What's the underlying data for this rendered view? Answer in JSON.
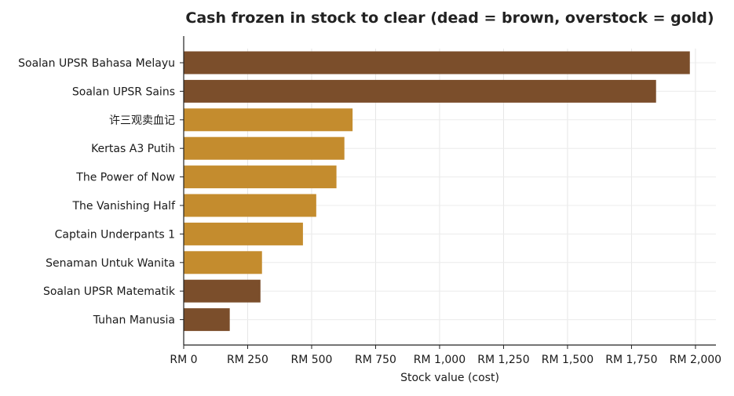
{
  "chart_data": {
    "type": "bar",
    "orientation": "horizontal",
    "title": "Cash frozen in stock to clear (dead = brown, overstock = gold)",
    "xlabel": "Stock value (cost)",
    "ylabel": "",
    "xlim": [
      0,
      2080
    ],
    "x_ticks": [
      0,
      250,
      500,
      750,
      1000,
      1250,
      1500,
      1750,
      2000
    ],
    "x_tick_labels": [
      "RM 0",
      "RM 250",
      "RM 500",
      "RM 750",
      "RM 1,000",
      "RM 1,250",
      "RM 1,500",
      "RM 1,750",
      "RM 2,000"
    ],
    "grid": true,
    "categories": [
      "Soalan UPSR Bahasa Melayu",
      "Soalan UPSR Sains",
      "许三观卖血记",
      "Kertas A3 Putih",
      "The Power of Now",
      "The Vanishing Half",
      "Captain Underpants 1",
      "Senaman Untuk Wanita",
      "Soalan UPSR Matematik",
      "Tuhan Manusia"
    ],
    "values": [
      1978,
      1846,
      660,
      628,
      597,
      518,
      466,
      306,
      300,
      180
    ],
    "status": [
      "dead",
      "dead",
      "overstock",
      "overstock",
      "overstock",
      "overstock",
      "overstock",
      "overstock",
      "dead",
      "dead"
    ],
    "colors": {
      "dead": "#7b4e2b",
      "overstock": "#c48c2e"
    }
  }
}
